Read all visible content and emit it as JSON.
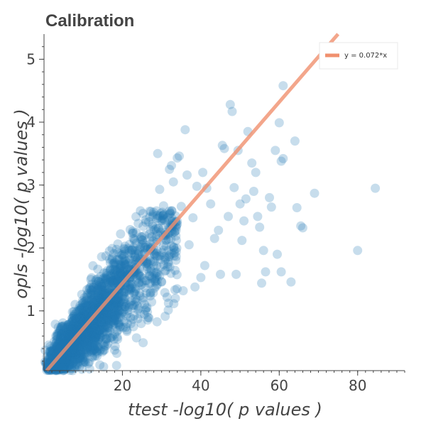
{
  "chart_data": {
    "type": "scatter",
    "title": "Calibration",
    "xlabel": "ttest -log10( p values )",
    "ylabel": "opls -log10( p values )",
    "xlim": [
      0,
      92
    ],
    "ylim": [
      0.05,
      5.4
    ],
    "x_major_ticks": [
      20,
      40,
      60,
      80
    ],
    "x_minor_step": 2,
    "y_major_ticks": [
      1,
      2,
      3,
      4,
      5
    ],
    "y_minor_step": 0.2,
    "grid": false,
    "legend_position": "top-right",
    "colors": {
      "points": "#1f77b4",
      "fit_line": "#f0906e",
      "axis": "#444444"
    },
    "series": [
      {
        "kind": "points",
        "dense_region": {
          "description_values": "cloud of several thousand points between x=0..35 and y=0..2.5, dense along y≈0.07x",
          "count": 2600
        },
        "points": [
          [
            84.5,
            2.95
          ],
          [
            80.0,
            1.96
          ],
          [
            69.0,
            2.87
          ],
          [
            64.0,
            3.7
          ],
          [
            66.0,
            2.32
          ],
          [
            65.5,
            2.35
          ],
          [
            64.5,
            2.64
          ],
          [
            63.0,
            1.46
          ],
          [
            61.0,
            4.58
          ],
          [
            60.0,
            3.99
          ],
          [
            60.5,
            3.38
          ],
          [
            61.0,
            3.42
          ],
          [
            59.0,
            3.55
          ],
          [
            59.5,
            1.9
          ],
          [
            60.5,
            1.62
          ],
          [
            58.0,
            2.65
          ],
          [
            57.5,
            2.8
          ],
          [
            56.5,
            1.62
          ],
          [
            55.5,
            1.44
          ],
          [
            56.0,
            1.96
          ],
          [
            55.0,
            2.33
          ],
          [
            54.5,
            2.5
          ],
          [
            53.5,
            2.9
          ],
          [
            54.0,
            3.2
          ],
          [
            53.0,
            3.35
          ],
          [
            52.0,
            3.85
          ],
          [
            51.5,
            2.78
          ],
          [
            51.0,
            2.43
          ],
          [
            50.5,
            2.12
          ],
          [
            50.0,
            2.7
          ],
          [
            49.5,
            3.55
          ],
          [
            49.0,
            1.58
          ],
          [
            48.5,
            2.96
          ],
          [
            48.0,
            4.17
          ],
          [
            47.5,
            4.28
          ],
          [
            47.0,
            2.5
          ],
          [
            46.0,
            3.58
          ],
          [
            45.5,
            3.63
          ],
          [
            45.0,
            1.58
          ],
          [
            44.5,
            2.28
          ],
          [
            43.5,
            2.15
          ],
          [
            42.5,
            2.7
          ],
          [
            41.5,
            2.95
          ],
          [
            41.0,
            1.72
          ],
          [
            40.5,
            3.2
          ],
          [
            40.0,
            1.53
          ],
          [
            39.0,
            2.98
          ],
          [
            38.5,
            1.38
          ],
          [
            38.0,
            2.48
          ],
          [
            37.0,
            2.05
          ],
          [
            36.5,
            3.16
          ],
          [
            36.0,
            3.88
          ],
          [
            35.5,
            1.32
          ],
          [
            35.0,
            2.66
          ],
          [
            34.5,
            3.46
          ],
          [
            34.0,
            3.43
          ],
          [
            33.5,
            1.2
          ],
          [
            33.0,
            3.05
          ],
          [
            32.5,
            3.31
          ],
          [
            32.0,
            3.25
          ],
          [
            31.0,
            2.2
          ],
          [
            30.5,
            2.67
          ],
          [
            30.0,
            1.46
          ],
          [
            29.5,
            2.93
          ],
          [
            29.0,
            3.5
          ]
        ]
      }
    ],
    "fit_line": {
      "label": "y = 0.072*x",
      "slope": 0.072,
      "intercept": 0
    }
  }
}
